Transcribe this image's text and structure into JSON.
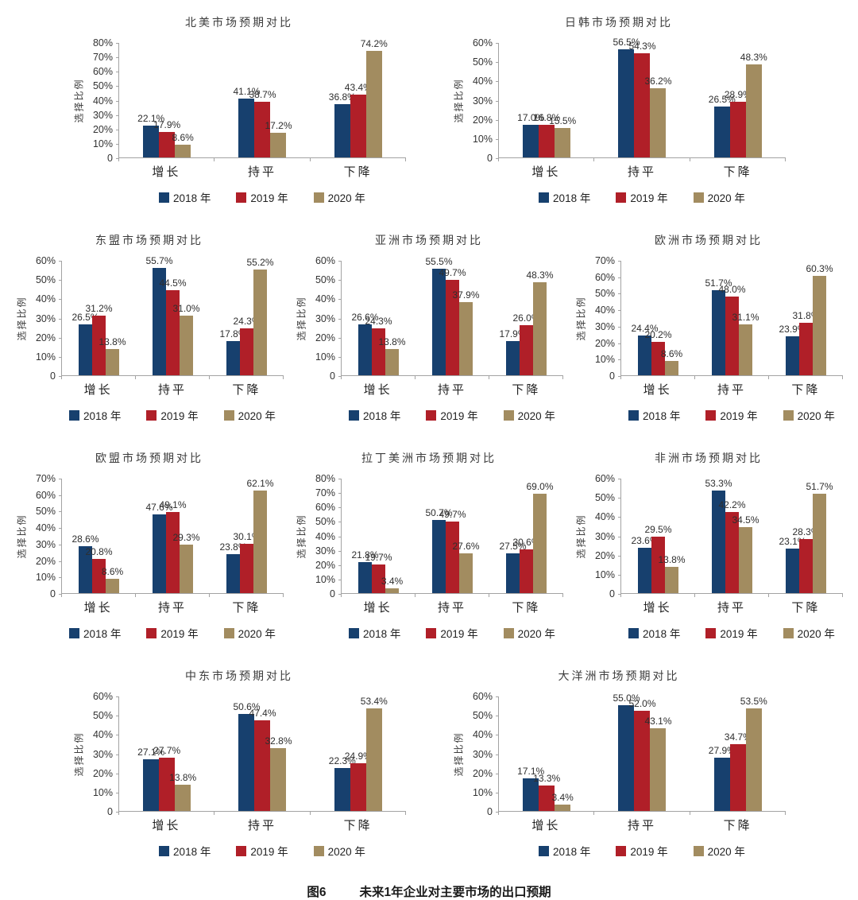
{
  "figure_caption": {
    "prefix": "图6",
    "text": "未来1年企业对主要市场的出口预期"
  },
  "common": {
    "ylabel": "选择比例",
    "categories": [
      "增长",
      "持平",
      "下降"
    ],
    "series_colors": [
      "#17406e",
      "#b01f28",
      "#a28c60"
    ],
    "axis_color": "#a3a3a3"
  },
  "layout": {
    "rows": [
      [
        0,
        1
      ],
      [
        2,
        3,
        4
      ],
      [
        5,
        6,
        7
      ],
      [
        8,
        9
      ]
    ],
    "legend_position": "bottom",
    "grid": false
  },
  "chart_data": [
    {
      "type": "bar",
      "title": "北美市场预期对比",
      "ylim": [
        0,
        80
      ],
      "yticks": [
        "80%",
        "70%",
        "60%",
        "50%",
        "40%",
        "30%",
        "20%",
        "10%",
        "0"
      ],
      "categories": [
        "增长",
        "持平",
        "下降"
      ],
      "series": [
        {
          "name": "2018 年",
          "values": [
            22.1,
            41.1,
            36.8
          ]
        },
        {
          "name": "2019 年",
          "values": [
            17.9,
            38.7,
            43.4
          ]
        },
        {
          "name": "2020 年",
          "values": [
            8.6,
            17.2,
            74.2
          ]
        }
      ]
    },
    {
      "type": "bar",
      "title": "日韩市场预期对比",
      "ylim": [
        0,
        60
      ],
      "yticks": [
        "60%",
        "50%",
        "40%",
        "30%",
        "20%",
        "10%",
        "0"
      ],
      "categories": [
        "增长",
        "持平",
        "下降"
      ],
      "series": [
        {
          "name": "2018 年",
          "values": [
            17.0,
            56.5,
            26.5
          ]
        },
        {
          "name": "2019 年",
          "values": [
            16.8,
            54.3,
            28.9
          ]
        },
        {
          "name": "2020 年",
          "values": [
            15.5,
            36.2,
            48.3
          ]
        }
      ]
    },
    {
      "type": "bar",
      "title": "东盟市场预期对比",
      "ylim": [
        0,
        60
      ],
      "yticks": [
        "60%",
        "50%",
        "40%",
        "30%",
        "20%",
        "10%",
        "0"
      ],
      "categories": [
        "增长",
        "持平",
        "下降"
      ],
      "series": [
        {
          "name": "2018 年",
          "values": [
            26.5,
            55.7,
            17.8
          ]
        },
        {
          "name": "2019 年",
          "values": [
            31.2,
            44.5,
            24.3
          ]
        },
        {
          "name": "2020 年",
          "values": [
            13.8,
            31.0,
            55.2
          ]
        }
      ]
    },
    {
      "type": "bar",
      "title": "亚洲市场预期对比",
      "ylim": [
        0,
        60
      ],
      "yticks": [
        "60%",
        "50%",
        "40%",
        "30%",
        "20%",
        "10%",
        "0"
      ],
      "categories": [
        "增长",
        "持平",
        "下降"
      ],
      "series": [
        {
          "name": "2018 年",
          "values": [
            26.6,
            55.5,
            17.9
          ]
        },
        {
          "name": "2019 年",
          "values": [
            24.3,
            49.7,
            26.0
          ]
        },
        {
          "name": "2020 年",
          "values": [
            13.8,
            37.9,
            48.3
          ]
        }
      ]
    },
    {
      "type": "bar",
      "title": "欧洲市场预期对比",
      "ylim": [
        0,
        70
      ],
      "yticks": [
        "70%",
        "60%",
        "50%",
        "40%",
        "30%",
        "20%",
        "10%",
        "0"
      ],
      "categories": [
        "增长",
        "持平",
        "下降"
      ],
      "series": [
        {
          "name": "2018 年",
          "values": [
            24.4,
            51.7,
            23.9
          ]
        },
        {
          "name": "2019 年",
          "values": [
            20.2,
            48.0,
            31.8
          ]
        },
        {
          "name": "2020 年",
          "values": [
            8.6,
            31.1,
            60.3
          ]
        }
      ]
    },
    {
      "type": "bar",
      "title": "欧盟市场预期对比",
      "ylim": [
        0,
        70
      ],
      "yticks": [
        "70%",
        "60%",
        "50%",
        "40%",
        "30%",
        "20%",
        "10%",
        "0"
      ],
      "categories": [
        "增长",
        "持平",
        "下降"
      ],
      "series": [
        {
          "name": "2018 年",
          "values": [
            28.6,
            47.6,
            23.8
          ]
        },
        {
          "name": "2019 年",
          "values": [
            20.8,
            49.1,
            30.1
          ]
        },
        {
          "name": "2020 年",
          "values": [
            8.6,
            29.3,
            62.1
          ]
        }
      ]
    },
    {
      "type": "bar",
      "title": "拉丁美洲市场预期对比",
      "ylim": [
        0,
        80
      ],
      "yticks": [
        "80%",
        "70%",
        "60%",
        "50%",
        "40%",
        "30%",
        "20%",
        "10%",
        "0"
      ],
      "categories": [
        "增长",
        "持平",
        "下降"
      ],
      "series": [
        {
          "name": "2018 年",
          "values": [
            21.8,
            50.7,
            27.5
          ]
        },
        {
          "name": "2019 年",
          "values": [
            19.7,
            49.7,
            30.6
          ]
        },
        {
          "name": "2020 年",
          "values": [
            3.4,
            27.6,
            69.0
          ]
        }
      ]
    },
    {
      "type": "bar",
      "title": "非洲市场预期对比",
      "ylim": [
        0,
        60
      ],
      "yticks": [
        "60%",
        "50%",
        "40%",
        "30%",
        "20%",
        "10%",
        "0"
      ],
      "categories": [
        "增长",
        "持平",
        "下降"
      ],
      "series": [
        {
          "name": "2018 年",
          "values": [
            23.6,
            53.3,
            23.1
          ]
        },
        {
          "name": "2019 年",
          "values": [
            29.5,
            42.2,
            28.3
          ]
        },
        {
          "name": "2020 年",
          "values": [
            13.8,
            34.5,
            51.7
          ]
        }
      ]
    },
    {
      "type": "bar",
      "title": "中东市场预期对比",
      "ylim": [
        0,
        60
      ],
      "yticks": [
        "60%",
        "50%",
        "40%",
        "30%",
        "20%",
        "10%",
        "0"
      ],
      "categories": [
        "增长",
        "持平",
        "下降"
      ],
      "series": [
        {
          "name": "2018 年",
          "values": [
            27.1,
            50.6,
            22.3
          ]
        },
        {
          "name": "2019 年",
          "values": [
            27.7,
            47.4,
            24.9
          ]
        },
        {
          "name": "2020 年",
          "values": [
            13.8,
            32.8,
            53.4
          ]
        }
      ]
    },
    {
      "type": "bar",
      "title": "大洋洲市场预期对比",
      "ylim": [
        0,
        60
      ],
      "yticks": [
        "60%",
        "50%",
        "40%",
        "30%",
        "20%",
        "10%",
        "0"
      ],
      "categories": [
        "增长",
        "持平",
        "下降"
      ],
      "series": [
        {
          "name": "2018 年",
          "values": [
            17.1,
            55.0,
            27.9
          ]
        },
        {
          "name": "2019 年",
          "values": [
            13.3,
            52.0,
            34.7
          ]
        },
        {
          "name": "2020 年",
          "values": [
            3.4,
            43.1,
            53.5
          ]
        }
      ]
    }
  ]
}
